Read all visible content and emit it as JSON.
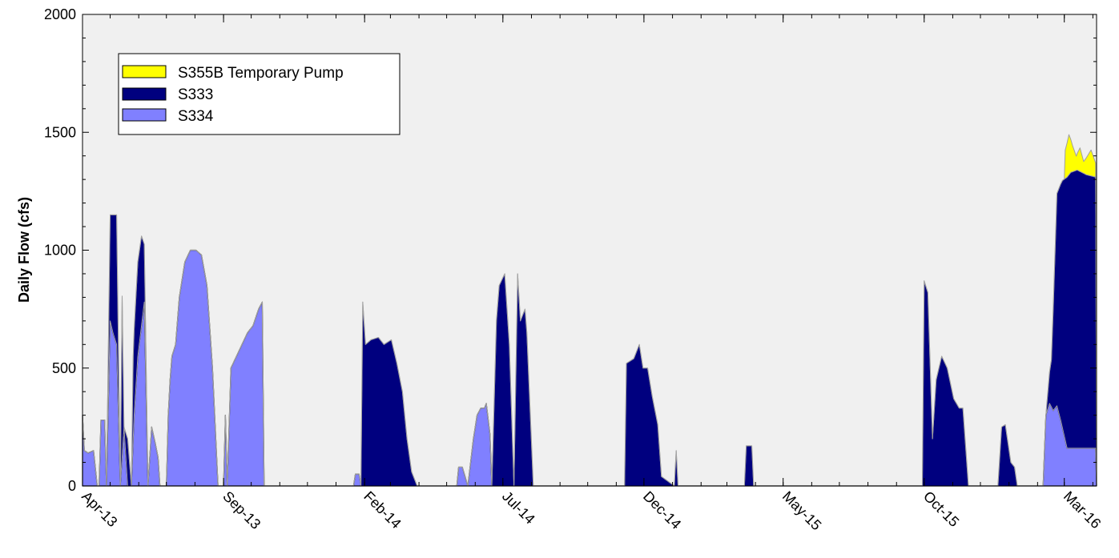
{
  "chart_data": {
    "type": "area",
    "stacked": true,
    "title": "",
    "xlabel": "",
    "ylabel": "Daily Flow (cfs)",
    "ylim": [
      0,
      2000
    ],
    "yticks": [
      "0",
      "500",
      "1000",
      "1500",
      "2000"
    ],
    "x_range": [
      "2013-04-01",
      "2016-04-05"
    ],
    "x_major_ticks": [
      {
        "date": "2013-04-01",
        "label": "Apr-13"
      },
      {
        "date": "2013-09-01",
        "label": "Sep-13"
      },
      {
        "date": "2014-02-01",
        "label": "Feb-14"
      },
      {
        "date": "2014-07-01",
        "label": "Jul-14"
      },
      {
        "date": "2014-12-01",
        "label": "Dec-14"
      },
      {
        "date": "2015-05-01",
        "label": "May-15"
      },
      {
        "date": "2015-10-01",
        "label": "Oct-15"
      },
      {
        "date": "2016-03-01",
        "label": "Mar-16"
      }
    ],
    "grid": false,
    "legend_position": "top-left",
    "legend": [
      {
        "label": "S355B Temporary Pump",
        "color": "#ffff00"
      },
      {
        "label": "S333",
        "color": "#00007f"
      },
      {
        "label": "S334",
        "color": "#8080ff"
      }
    ],
    "series": [
      {
        "name": "S334",
        "color": "#8080ff",
        "x": [
          "2013-04-01",
          "2013-04-03",
          "2013-04-07",
          "2013-04-13",
          "2013-04-17",
          "2013-04-19",
          "2013-04-21",
          "2013-04-25",
          "2013-04-27",
          "2013-05-01",
          "2013-05-04",
          "2013-05-08",
          "2013-05-12",
          "2013-05-16",
          "2013-05-20",
          "2013-05-24",
          "2013-05-27",
          "2013-05-31",
          "2013-06-04",
          "2013-06-07",
          "2013-06-11",
          "2013-06-15",
          "2013-06-19",
          "2013-06-22",
          "2013-06-24",
          "2013-06-27",
          "2013-07-01",
          "2013-07-03",
          "2013-07-05",
          "2013-07-07",
          "2013-07-11",
          "2013-07-15",
          "2013-07-21",
          "2013-07-27",
          "2013-08-02",
          "2013-08-08",
          "2013-08-14",
          "2013-08-20",
          "2013-08-26",
          "2013-09-01",
          "2013-09-03",
          "2013-09-05",
          "2013-09-09",
          "2013-09-15",
          "2013-09-21",
          "2013-09-27",
          "2013-10-03",
          "2013-10-09",
          "2013-10-13",
          "2013-10-15",
          "2013-10-18",
          "2014-01-20",
          "2014-01-22",
          "2014-01-26",
          "2014-01-28",
          "2014-05-10",
          "2014-05-12",
          "2014-05-14",
          "2014-05-18",
          "2014-05-24",
          "2014-05-30",
          "2014-06-03",
          "2014-06-07",
          "2014-06-11",
          "2014-06-13",
          "2014-06-17",
          "2014-06-19",
          "2016-01-10",
          "2016-01-14",
          "2016-01-20",
          "2016-01-26",
          "2016-01-30",
          "2016-02-05",
          "2016-02-07",
          "2016-02-10",
          "2016-02-14",
          "2016-02-18",
          "2016-02-22",
          "2016-02-26",
          "2016-03-04",
          "2016-03-08",
          "2016-03-15",
          "2016-04-04"
        ],
        "values": [
          300,
          150,
          140,
          150,
          0,
          0,
          280,
          280,
          0,
          700,
          650,
          600,
          0,
          250,
          0,
          0,
          300,
          550,
          680,
          780,
          0,
          250,
          180,
          120,
          0,
          0,
          0,
          300,
          450,
          550,
          600,
          800,
          950,
          1000,
          1000,
          980,
          850,
          500,
          0,
          0,
          300,
          0,
          500,
          550,
          600,
          650,
          680,
          750,
          780,
          0,
          0,
          0,
          50,
          50,
          0,
          0,
          0,
          80,
          80,
          0,
          200,
          300,
          330,
          330,
          350,
          220,
          0,
          0,
          0,
          0,
          0,
          0,
          0,
          0,
          300,
          350,
          320,
          340,
          280,
          160,
          160,
          160,
          160
        ]
      },
      {
        "name": "S333",
        "color": "#00007f",
        "x": [
          "2013-04-01",
          "2013-04-27",
          "2013-05-01",
          "2013-05-04",
          "2013-05-08",
          "2013-05-12",
          "2013-05-14",
          "2013-05-16",
          "2013-05-20",
          "2013-05-24",
          "2013-05-26",
          "2013-05-31",
          "2013-06-04",
          "2013-06-08",
          "2013-06-11",
          "2014-01-28",
          "2014-01-30",
          "2014-02-02",
          "2014-02-08",
          "2014-02-16",
          "2014-02-22",
          "2014-03-02",
          "2014-03-08",
          "2014-03-14",
          "2014-03-19",
          "2014-03-24",
          "2014-03-30",
          "2014-06-19",
          "2014-06-24",
          "2014-06-27",
          "2014-07-03",
          "2014-07-08",
          "2014-07-13",
          "2014-07-17",
          "2014-07-20",
          "2014-07-25",
          "2014-07-27",
          "2014-08-03",
          "2014-08-08",
          "2014-08-13",
          "2014-08-18",
          "2014-08-20",
          "2014-11-10",
          "2014-11-12",
          "2014-11-20",
          "2014-11-26",
          "2014-11-30",
          "2014-12-05",
          "2014-12-10",
          "2014-12-16",
          "2014-12-20",
          "2014-12-27",
          "2015-01-03",
          "2015-01-05",
          "2015-01-07",
          "2015-03-20",
          "2015-03-22",
          "2015-03-28",
          "2015-03-30",
          "2015-09-29",
          "2015-10-01",
          "2015-10-05",
          "2015-10-10",
          "2015-10-14",
          "2015-10-20",
          "2015-10-26",
          "2015-11-02",
          "2015-11-08",
          "2015-11-12",
          "2015-11-18",
          "2015-11-24",
          "2015-11-28",
          "2015-12-20",
          "2015-12-24",
          "2015-12-28",
          "2016-01-03",
          "2016-01-07",
          "2016-01-10",
          "2016-02-10",
          "2016-02-16",
          "2016-02-22",
          "2016-02-28",
          "2016-03-04",
          "2016-03-08",
          "2016-03-15",
          "2016-03-25",
          "2016-04-04"
        ],
        "values": [
          0,
          0,
          450,
          500,
          550,
          0,
          680,
          0,
          200,
          0,
          350,
          400,
          380,
          200,
          0,
          0,
          780,
          600,
          620,
          630,
          600,
          620,
          520,
          400,
          200,
          60,
          0,
          0,
          700,
          850,
          900,
          600,
          0,
          900,
          700,
          750,
          650,
          0,
          0,
          0,
          0,
          0,
          0,
          520,
          540,
          600,
          500,
          500,
          380,
          260,
          40,
          20,
          0,
          150,
          0,
          0,
          170,
          170,
          0,
          0,
          870,
          820,
          200,
          450,
          550,
          500,
          370,
          330,
          330,
          0,
          0,
          0,
          0,
          250,
          260,
          100,
          80,
          0,
          0,
          200,
          900,
          1050,
          1150,
          1170,
          1180,
          1160,
          1150
        ]
      },
      {
        "name": "S355B Temporary Pump",
        "color": "#ffff00",
        "x": [
          "2016-03-01",
          "2016-03-02",
          "2016-03-06",
          "2016-03-10",
          "2016-03-14",
          "2016-03-18",
          "2016-03-22",
          "2016-03-26",
          "2016-03-30",
          "2016-04-04"
        ],
        "values": [
          0,
          120,
          170,
          110,
          60,
          100,
          50,
          80,
          110,
          60
        ]
      }
    ]
  }
}
